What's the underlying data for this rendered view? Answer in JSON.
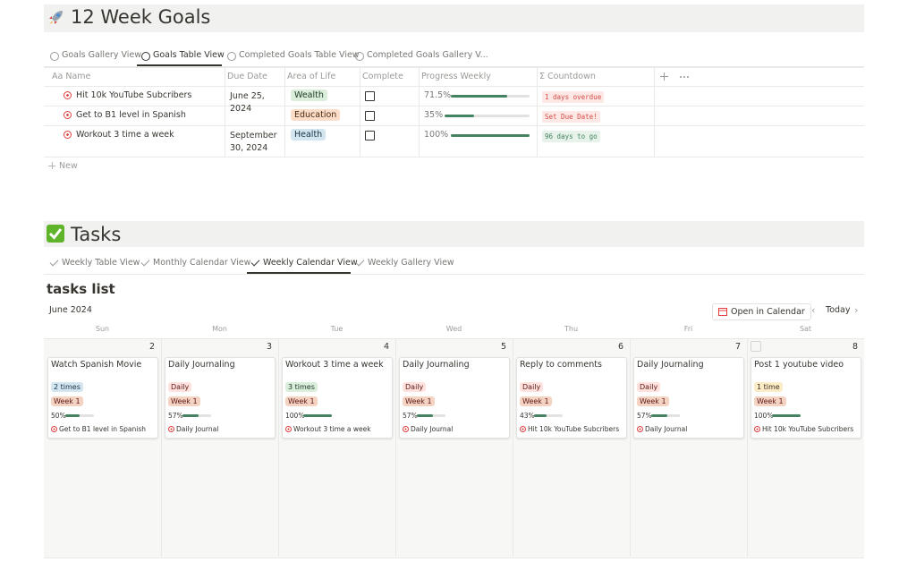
{
  "goals": {
    "title": "12 Week Goals",
    "tabs": [
      "Goals Gallery View",
      "Goals Table View",
      "Completed Goals Table View",
      "Completed Goals Gallery V..."
    ],
    "active_tab": 1,
    "columns": [
      "Aa Name",
      "Due Date",
      "Area of Life",
      "Complete",
      "Progress Weekly",
      "Σ Countdown"
    ],
    "rows": [
      {
        "name": "Hit 10k YouTube Subcribers",
        "due": "June 25, 2024",
        "area": "Wealth",
        "area_color": "green",
        "complete": false,
        "progress": {
          "value": 71.5,
          "label": "71.5%"
        },
        "countdown": "1 days overdue",
        "countdown_color": "red"
      },
      {
        "name": "Get to B1 level in Spanish",
        "due": null,
        "area": "Education",
        "area_color": "orange",
        "complete": false,
        "progress": {
          "value": 35,
          "label": "35%"
        },
        "countdown": "Set Due Date!",
        "countdown_color": "red"
      },
      {
        "name": "Workout 3 time a week",
        "due": "September 30, 2024",
        "area": "Health",
        "area_color": "blue",
        "complete": false,
        "progress": {
          "value": 100,
          "label": "100%"
        },
        "countdown": "96 days to go",
        "countdown_color": "green"
      }
    ],
    "new": "New"
  },
  "tasks": {
    "title": "Tasks",
    "tabs": [
      "Weekly Table View",
      "Monthly Calendar View",
      "Weekly Calendar View",
      "Weekly Gallery View"
    ],
    "active_tab": 2,
    "list_title": "tasks list",
    "month": "June 2024",
    "open_calendar": "Open in Calendar",
    "today": "Today",
    "weekdays": [
      "Sun",
      "Mon",
      "Tue",
      "Wed",
      "Thu",
      "Fri",
      "Sat"
    ],
    "days": [
      2,
      3,
      4,
      5,
      6,
      7,
      8
    ],
    "cards": [
      {
        "title": "Watch Spanish Movie",
        "frequency": "2 times",
        "frequency_color": "blue",
        "week": "Week 1",
        "progress": {
          "value": 50,
          "label": "50%"
        },
        "goal": "Get to B1 level in Spanish"
      },
      {
        "title": "Daily Journaling",
        "frequency": "Daily",
        "frequency_color": "red",
        "week": "Week 1",
        "progress": {
          "value": 57,
          "label": "57%"
        },
        "goal": "Daily Journal"
      },
      {
        "title": "Workout 3 time a week",
        "frequency": "3 times",
        "frequency_color": "green",
        "week": "Week 1",
        "progress": {
          "value": 100,
          "label": "100%"
        },
        "goal": "Workout 3 time a week"
      },
      {
        "title": "Daily Journaling",
        "frequency": "Daily",
        "frequency_color": "red",
        "week": "Week 1",
        "progress": {
          "value": 57,
          "label": "57%"
        },
        "goal": "Daily Journal"
      },
      {
        "title": "Reply to comments",
        "frequency": "Daily",
        "frequency_color": "red",
        "week": "Week 1",
        "progress": {
          "value": 43,
          "label": "43%"
        },
        "goal": "Hit 10k YouTube Subcribers"
      },
      {
        "title": "Daily Journaling",
        "frequency": "Daily",
        "frequency_color": "red",
        "week": "Week 1",
        "progress": {
          "value": 57,
          "label": "57%"
        },
        "goal": "Daily Journal"
      },
      {
        "title": "Post 1 youtube video",
        "frequency": "1 time",
        "frequency_color": "yellow",
        "week": "Week 1",
        "progress": {
          "value": 100,
          "label": "100%"
        },
        "goal": "Hit 10k YouTube Subcribers"
      }
    ]
  }
}
